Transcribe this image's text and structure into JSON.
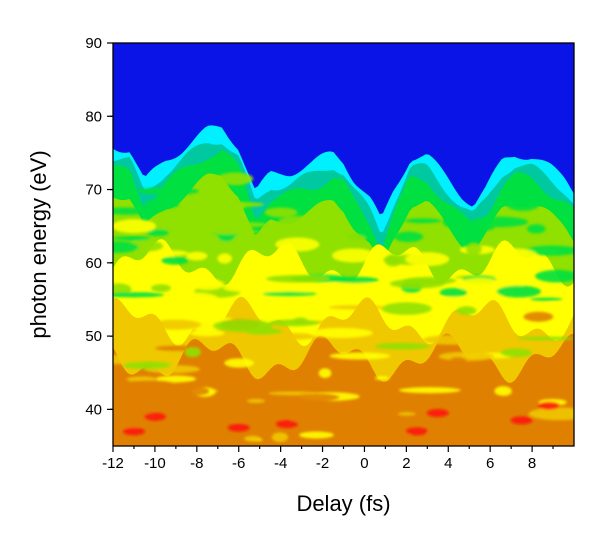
{
  "chart_data": {
    "type": "heatmap",
    "title": "",
    "xlabel": "Delay (fs)",
    "ylabel": "photon energy (eV)",
    "xlim": [
      -12,
      10
    ],
    "ylim": [
      35,
      90
    ],
    "x_ticks": [
      "-12",
      "-10",
      "-8",
      "-6",
      "-4",
      "-2",
      "0",
      "2",
      "4",
      "6",
      "8"
    ],
    "x_tick_values": [
      -12,
      -10,
      -8,
      -6,
      -4,
      -2,
      0,
      2,
      4,
      6,
      8
    ],
    "y_ticks": [
      "40",
      "50",
      "60",
      "70",
      "80",
      "90"
    ],
    "y_tick_values": [
      40,
      50,
      60,
      70,
      80,
      90
    ],
    "grid": false,
    "background_color": "#0a14e6",
    "colorscale": [
      "#0a14e6",
      "#00f0ff",
      "#00c8a0",
      "#00e040",
      "#90e000",
      "#ffff00",
      "#f0c800",
      "#e08000",
      "#ff1010"
    ],
    "cutoff_edge": {
      "x": [
        -12,
        -11.2,
        -10.5,
        -9.5,
        -8.5,
        -7.5,
        -6.8,
        -6,
        -5.2,
        -4.5,
        -3.5,
        -2.5,
        -1.5,
        -1,
        -0.5,
        0.3,
        0.8,
        1.4,
        2.2,
        3,
        3.8,
        4.6,
        5.2,
        5.8,
        6.6,
        7.2,
        8,
        8.8,
        9.6,
        10
      ],
      "y": [
        76,
        75.5,
        71,
        74,
        76,
        78,
        78.5,
        76,
        69.5,
        72,
        72.5,
        73.5,
        75,
        74,
        71.5,
        68.5,
        65.5,
        70,
        74.5,
        74.5,
        72,
        69.5,
        68,
        70,
        74,
        75,
        74.5,
        73,
        71.5,
        70
      ]
    }
  }
}
